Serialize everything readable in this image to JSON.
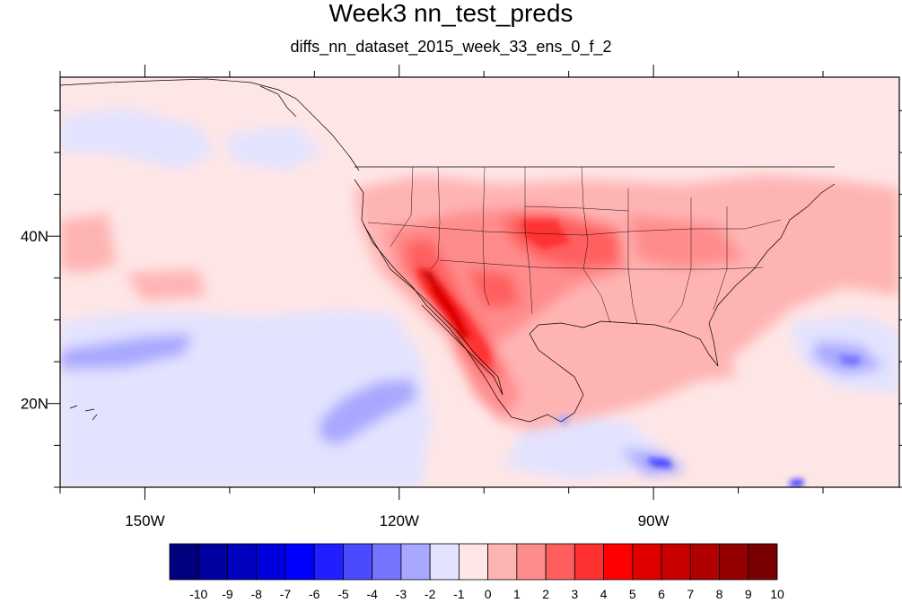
{
  "map": {
    "title": "Week3 nn_test_preds",
    "subtitle": "diffs_nn_dataset_2015_week_33_ens_0_f_2",
    "lon_labels": [
      "150W",
      "120W",
      "90W"
    ],
    "lat_labels": [
      "40N",
      "20N"
    ],
    "extent": {
      "lon": [
        -160,
        -61
      ],
      "lat": [
        10,
        59
      ]
    }
  },
  "colorbar": {
    "labels": [
      "-10",
      "-9",
      "-8",
      "-7",
      "-6",
      "-5",
      "-4",
      "-3",
      "-2",
      "-1",
      "0",
      "1",
      "2",
      "3",
      "4",
      "5",
      "6",
      "7",
      "8",
      "9",
      "10"
    ],
    "colors": [
      "#00007f",
      "#00009f",
      "#0000bf",
      "#0000df",
      "#0000ff",
      "#1f1fff",
      "#4a4aff",
      "#7474ff",
      "#a8a8ff",
      "#e3e3ff",
      "#ffe6e6",
      "#ffb4b4",
      "#ff8c8c",
      "#ff5e5e",
      "#ff3030",
      "#ff0000",
      "#e00000",
      "#c80000",
      "#b00000",
      "#940000",
      "#780000"
    ]
  }
}
